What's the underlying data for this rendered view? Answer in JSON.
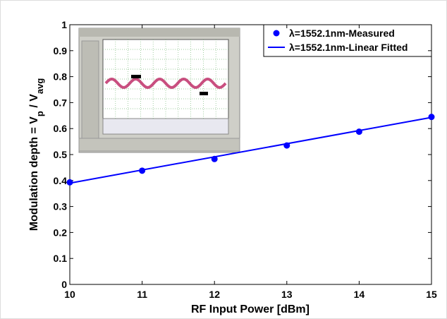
{
  "chart_data": {
    "type": "line",
    "xlabel": "RF Input Power [dBm]",
    "ylabel_parts": [
      "Modulation depth = V",
      "p",
      " / V",
      "avg"
    ],
    "xlim": [
      10,
      15
    ],
    "xticks": [
      10,
      11,
      12,
      13,
      14,
      15
    ],
    "ylim": [
      0,
      1
    ],
    "yticks": [
      0,
      0.1,
      0.2,
      0.3,
      0.4,
      0.5,
      0.6,
      0.7,
      0.8,
      0.9,
      1
    ],
    "grid": false,
    "legend": "upper right",
    "series": [
      {
        "name": "λ=1552.1nm-Measured",
        "color": "#0000ff",
        "style": "marker",
        "x": [
          10,
          11,
          12,
          13,
          14,
          15
        ],
        "values": [
          0.393,
          0.438,
          0.483,
          0.535,
          0.588,
          0.645
        ]
      },
      {
        "name": "λ=1552.1nm-Linear Fitted",
        "color": "#0000ff",
        "style": "line",
        "x": [
          10,
          15
        ],
        "values": [
          0.39,
          0.643
        ]
      }
    ]
  }
}
